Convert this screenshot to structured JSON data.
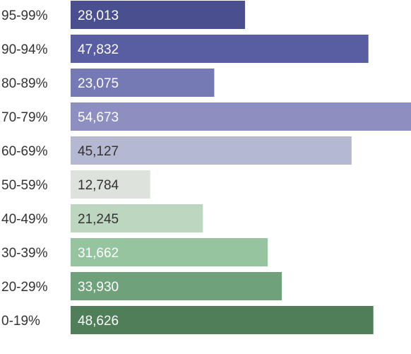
{
  "chart_data": {
    "type": "bar",
    "orientation": "horizontal",
    "categories": [
      "95-99%",
      "90-94%",
      "80-89%",
      "70-79%",
      "60-69%",
      "50-59%",
      "40-49%",
      "30-39%",
      "20-29%",
      "0-19%"
    ],
    "values": [
      28013,
      47832,
      23075,
      54673,
      45127,
      12784,
      21245,
      31662,
      33930,
      48626
    ],
    "value_labels": [
      "28,013",
      "47,832",
      "23,075",
      "54,673",
      "45,127",
      "12,784",
      "21,245",
      "31,662",
      "33,930",
      "48,626"
    ],
    "bar_colors": [
      "#4a4f90",
      "#585ea1",
      "#7579b4",
      "#8c8fbf",
      "#b5b8d1",
      "#dde2dd",
      "#bcd6bf",
      "#96c49f",
      "#6fa27b",
      "#4f7e58"
    ],
    "label_colors": [
      "#ffffff",
      "#ffffff",
      "#ffffff",
      "#ffffff",
      "#333333",
      "#333333",
      "#333333",
      "#ffffff",
      "#ffffff",
      "#ffffff"
    ],
    "xlim": [
      0,
      54673
    ],
    "grid": false,
    "legend": "none"
  }
}
